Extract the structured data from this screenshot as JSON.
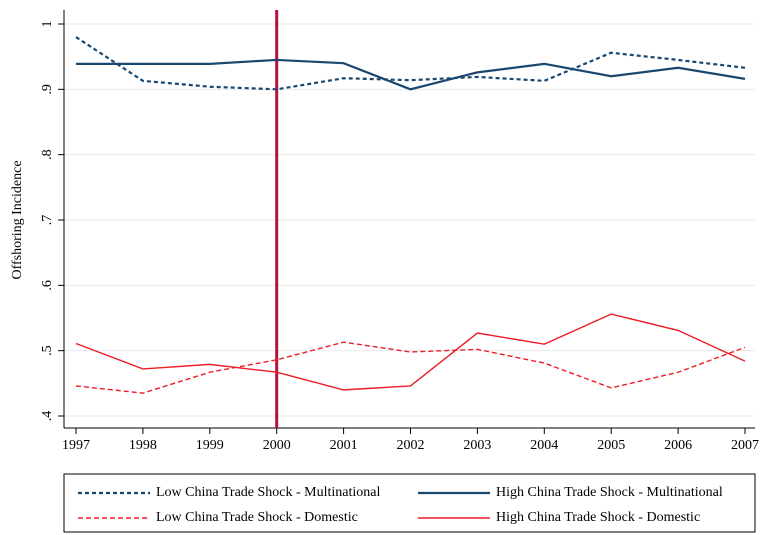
{
  "chart_data": {
    "type": "line",
    "ylabel": "Offshoring Incidence",
    "x": [
      1997,
      1998,
      1999,
      2000,
      2001,
      2002,
      2003,
      2004,
      2005,
      2006,
      2007
    ],
    "xlim": [
      1997,
      2007
    ],
    "xticks": [
      1997,
      1998,
      1999,
      2000,
      2001,
      2002,
      2003,
      2004,
      2005,
      2006,
      2007
    ],
    "ylim": [
      0.4,
      1
    ],
    "yticks": [
      {
        "value": 0.4,
        "label": ".4"
      },
      {
        "value": 0.5,
        "label": ".5"
      },
      {
        "value": 0.6,
        "label": ".6"
      },
      {
        "value": 0.7,
        "label": ".7"
      },
      {
        "value": 0.8,
        "label": ".8"
      },
      {
        "value": 0.9,
        "label": ".9"
      },
      1
    ],
    "grid": true,
    "vline": {
      "x": 2000,
      "color": "#b5123a"
    },
    "series": [
      {
        "name": "Low China Trade Shock - Multinational",
        "color": "#1a476f",
        "dash": true,
        "values": [
          0.98,
          0.913,
          0.904,
          0.9,
          0.917,
          0.914,
          0.919,
          0.913,
          0.956,
          0.945,
          0.933
        ]
      },
      {
        "name": "High China Trade Shock - Multinational",
        "color": "#1a476f",
        "dash": false,
        "values": [
          0.939,
          0.939,
          0.939,
          0.945,
          0.94,
          0.9,
          0.926,
          0.939,
          0.92,
          0.933,
          0.916
        ]
      },
      {
        "name": "Low China Trade Shock - Domestic",
        "color": "#ee1c25",
        "dash": true,
        "values": [
          0.446,
          0.435,
          0.467,
          0.486,
          0.513,
          0.498,
          0.502,
          0.481,
          0.443,
          0.467,
          0.505
        ]
      },
      {
        "name": "High China Trade Shock - Domestic",
        "color": "#ee1c25",
        "dash": false,
        "values": [
          0.511,
          0.472,
          0.479,
          0.467,
          0.44,
          0.446,
          0.527,
          0.51,
          0.556,
          0.531,
          0.484
        ]
      }
    ]
  }
}
